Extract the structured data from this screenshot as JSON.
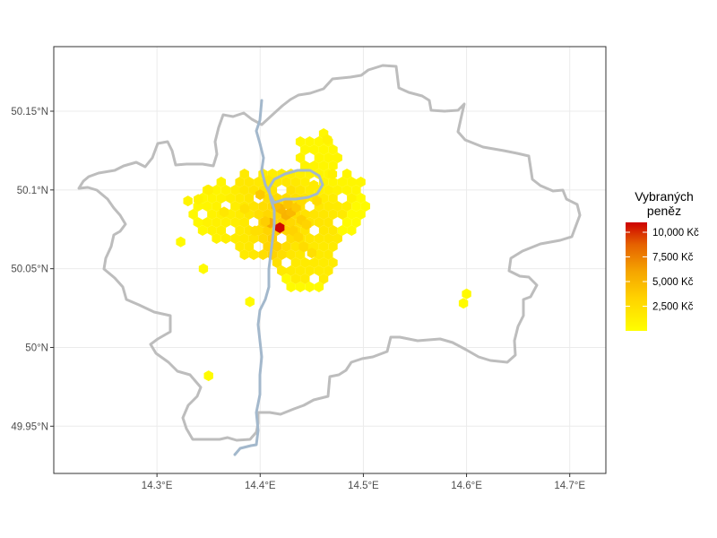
{
  "map": {
    "x_ticks": [
      {
        "lon": 14.3,
        "label": "14.3°E"
      },
      {
        "lon": 14.4,
        "label": "14.4°E"
      },
      {
        "lon": 14.5,
        "label": "14.5°E"
      },
      {
        "lon": 14.6,
        "label": "14.6°E"
      },
      {
        "lon": 14.7,
        "label": "14.7°E"
      }
    ],
    "y_ticks": [
      {
        "lat": 50.15,
        "label": "50.15°N"
      },
      {
        "lat": 50.1,
        "label": "50.1°N"
      },
      {
        "lat": 50.05,
        "label": "50.05°N"
      },
      {
        "lat": 50.0,
        "label": "50°N"
      },
      {
        "lat": 49.95,
        "label": "49.95°N"
      }
    ],
    "lon_range": [
      14.2,
      14.735
    ],
    "lat_range": [
      49.92,
      50.191
    ],
    "boundary_color": "#bdbdbd",
    "river_color": "#9fb3c8",
    "grid": true
  },
  "legend": {
    "title_line1": "Vybraných",
    "title_line2": "peněz",
    "labels": [
      {
        "value": 10000,
        "text": "10,000 Kč"
      },
      {
        "value": 7500,
        "text": "7,500 Kč"
      },
      {
        "value": 5000,
        "text": "5,000 Kč"
      },
      {
        "value": 2500,
        "text": "2,500 Kč"
      }
    ],
    "range": [
      0,
      11000
    ],
    "low_color": "#ffff00",
    "high_color": "#cc0000"
  },
  "chart_data": {
    "type": "heatmap",
    "description_units": "hexbin of withdrawn amounts (Kč) per area",
    "points": [
      {
        "lon": 14.419,
        "lat": 50.076,
        "value": 10800
      },
      {
        "lon": 14.41,
        "lat": 50.079,
        "value": 5800
      },
      {
        "lon": 14.425,
        "lat": 50.084,
        "value": 5200
      },
      {
        "lon": 14.43,
        "lat": 50.086,
        "value": 4800
      },
      {
        "lon": 14.42,
        "lat": 50.088,
        "value": 5000
      },
      {
        "lon": 14.415,
        "lat": 50.09,
        "value": 4500
      },
      {
        "lon": 14.427,
        "lat": 50.091,
        "value": 4200
      },
      {
        "lon": 14.435,
        "lat": 50.089,
        "value": 3800
      },
      {
        "lon": 14.44,
        "lat": 50.081,
        "value": 3500
      },
      {
        "lon": 14.445,
        "lat": 50.078,
        "value": 3200
      },
      {
        "lon": 14.4,
        "lat": 50.097,
        "value": 3800
      },
      {
        "lon": 14.405,
        "lat": 50.08,
        "value": 3600
      },
      {
        "lon": 14.432,
        "lat": 50.074,
        "value": 3300
      },
      {
        "lon": 14.437,
        "lat": 50.07,
        "value": 2900
      },
      {
        "lon": 14.442,
        "lat": 50.064,
        "value": 2600
      },
      {
        "lon": 14.45,
        "lat": 50.06,
        "value": 2400
      },
      {
        "lon": 14.455,
        "lat": 50.093,
        "value": 2700
      },
      {
        "lon": 14.395,
        "lat": 50.074,
        "value": 2400
      },
      {
        "lon": 14.385,
        "lat": 50.088,
        "value": 2300
      },
      {
        "lon": 14.365,
        "lat": 50.086,
        "value": 1800
      },
      {
        "lon": 14.44,
        "lat": 50.093,
        "value": 2600
      },
      {
        "lon": 14.408,
        "lat": 50.106,
        "value": 1800
      },
      {
        "lon": 14.452,
        "lat": 50.103,
        "value": 1500
      },
      {
        "lon": 14.465,
        "lat": 50.132,
        "value": 1000
      },
      {
        "lon": 14.47,
        "lat": 50.11,
        "value": 1100
      },
      {
        "lon": 14.35,
        "lat": 50.1,
        "value": 1200
      },
      {
        "lon": 14.34,
        "lat": 50.094,
        "value": 1000
      },
      {
        "lon": 14.33,
        "lat": 50.093,
        "value": 800
      },
      {
        "lon": 14.323,
        "lat": 50.067,
        "value": 400
      },
      {
        "lon": 14.345,
        "lat": 50.05,
        "value": 400
      },
      {
        "lon": 14.39,
        "lat": 50.029,
        "value": 300
      },
      {
        "lon": 14.35,
        "lat": 49.982,
        "value": 300
      },
      {
        "lon": 14.6,
        "lat": 50.034,
        "value": 400
      },
      {
        "lon": 14.597,
        "lat": 50.028,
        "value": 300
      }
    ]
  }
}
